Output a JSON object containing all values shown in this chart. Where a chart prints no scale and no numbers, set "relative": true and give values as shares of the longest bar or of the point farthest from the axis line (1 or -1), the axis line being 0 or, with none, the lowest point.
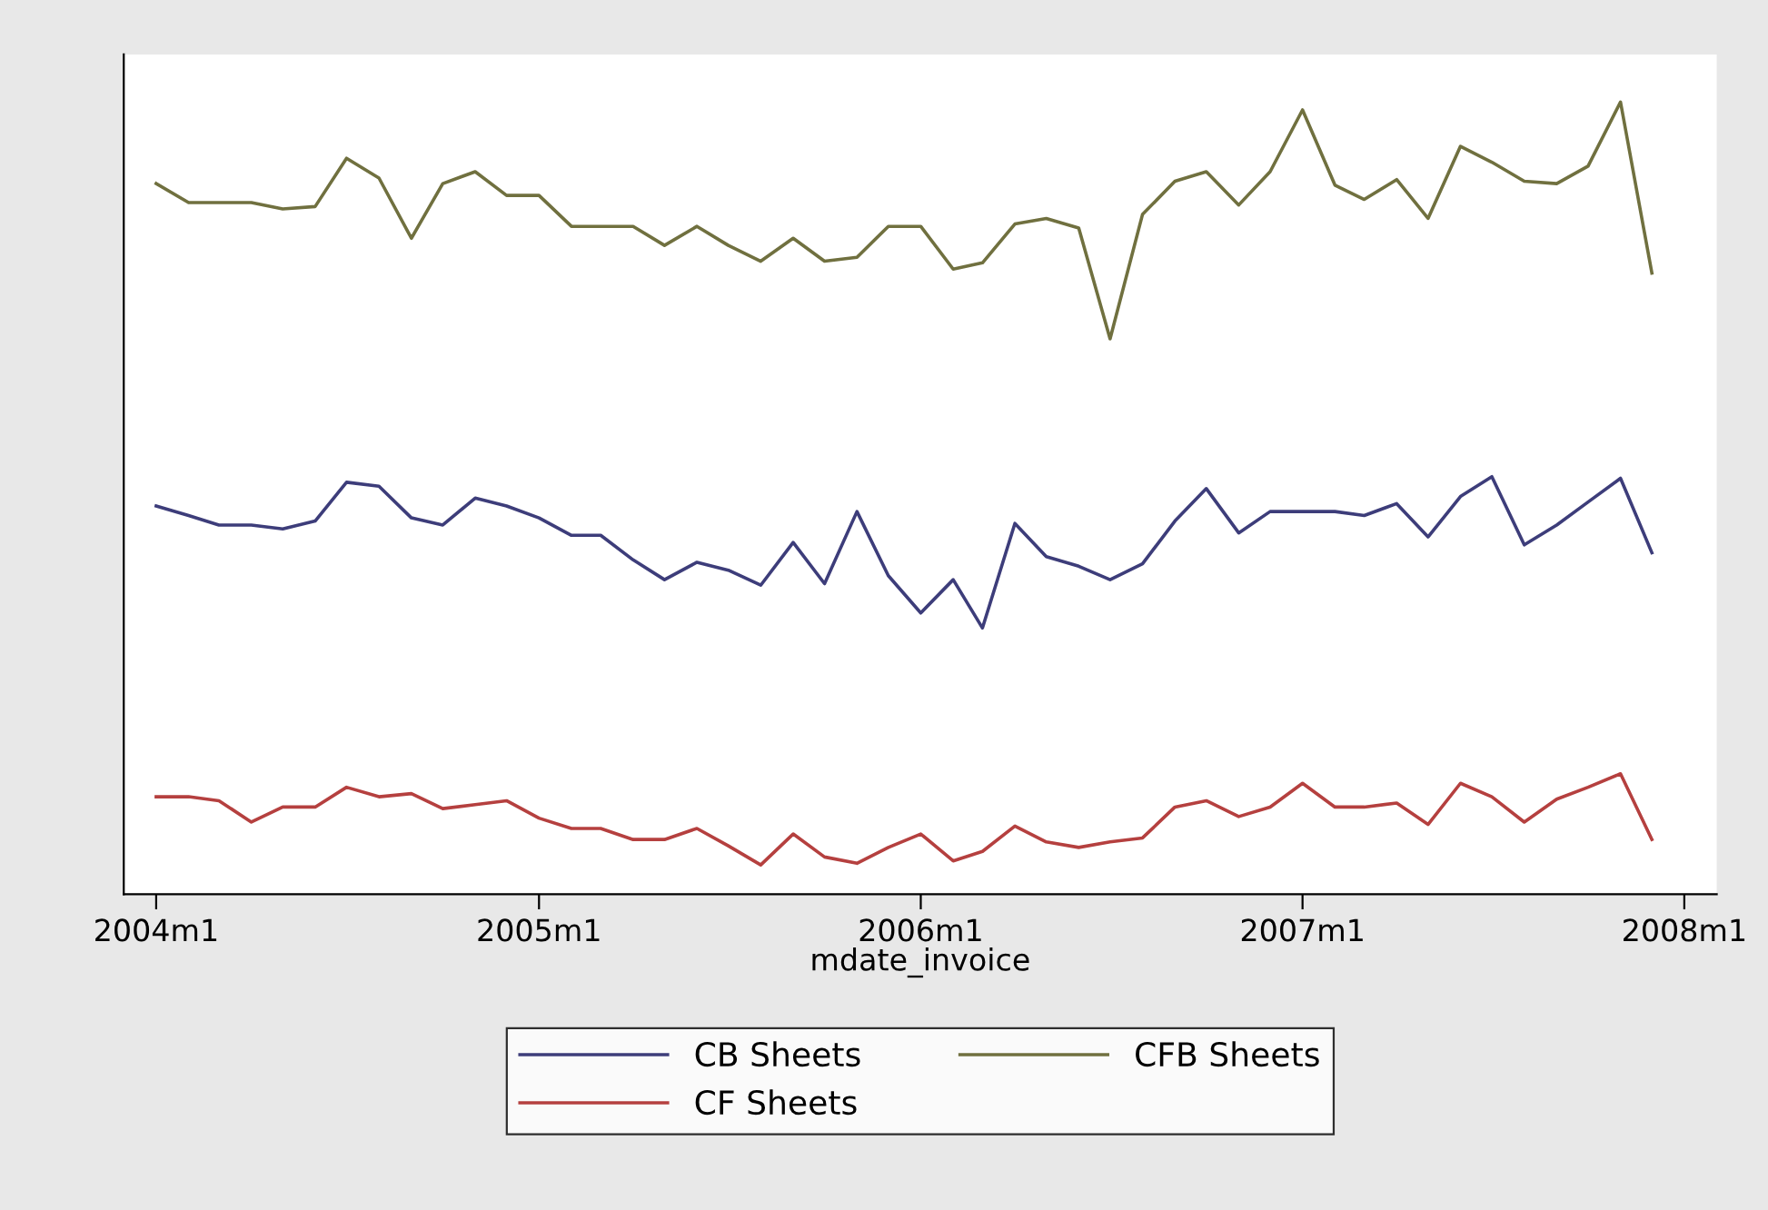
{
  "chart_data": {
    "type": "line",
    "relative": true,
    "xlabel": "mdate_invoice",
    "legend": "bottom",
    "x": [
      "2004-01",
      "2004-02",
      "2004-03",
      "2004-04",
      "2004-05",
      "2004-06",
      "2004-07",
      "2004-08",
      "2004-09",
      "2004-10",
      "2004-11",
      "2004-12",
      "2005-01",
      "2005-02",
      "2005-03",
      "2005-04",
      "2005-05",
      "2005-06",
      "2005-07",
      "2005-08",
      "2005-09",
      "2005-10",
      "2005-11",
      "2005-12",
      "2006-01",
      "2006-02",
      "2006-03",
      "2006-04",
      "2006-05",
      "2006-06",
      "2006-07",
      "2006-08",
      "2006-09",
      "2006-10",
      "2006-11",
      "2006-12",
      "2007-01",
      "2007-02",
      "2007-03",
      "2007-04",
      "2007-05",
      "2007-06",
      "2007-07",
      "2007-08",
      "2007-09",
      "2007-10",
      "2007-11",
      "2007-12"
    ],
    "xlim": [
      "2003-12",
      "2008-02"
    ],
    "xticks": [
      {
        "value": "2004-01",
        "label": "2004m1"
      },
      {
        "value": "2005-01",
        "label": "2005m1"
      },
      {
        "value": "2006-01",
        "label": "2006m1"
      },
      {
        "value": "2007-01",
        "label": "2007m1"
      },
      {
        "value": "2008-01",
        "label": "2008m1"
      }
    ],
    "series": [
      {
        "name": "CB Sheets",
        "color": "#3d3d7a",
        "values": [
          0.49,
          0.478,
          0.466,
          0.466,
          0.461,
          0.471,
          0.52,
          0.515,
          0.475,
          0.466,
          0.5,
          0.49,
          0.475,
          0.453,
          0.453,
          0.422,
          0.397,
          0.419,
          0.409,
          0.39,
          0.444,
          0.392,
          0.483,
          0.402,
          0.355,
          0.397,
          0.336,
          0.468,
          0.426,
          0.414,
          0.397,
          0.417,
          0.471,
          0.512,
          0.456,
          0.483,
          0.483,
          0.483,
          0.478,
          0.493,
          0.451,
          0.502,
          0.527,
          0.441,
          0.466,
          0.495,
          0.525,
          0.431
        ]
      },
      {
        "name": "CF Sheets",
        "color": "#b5403f",
        "values": [
          0.123,
          0.123,
          0.118,
          0.091,
          0.11,
          0.11,
          0.135,
          0.123,
          0.127,
          0.108,
          0.113,
          0.118,
          0.096,
          0.083,
          0.083,
          0.069,
          0.069,
          0.083,
          0.061,
          0.037,
          0.076,
          0.047,
          0.039,
          0.059,
          0.076,
          0.042,
          0.054,
          0.086,
          0.066,
          0.059,
          0.066,
          0.071,
          0.11,
          0.118,
          0.098,
          0.11,
          0.14,
          0.11,
          0.11,
          0.115,
          0.088,
          0.14,
          0.123,
          0.091,
          0.12,
          0.135,
          0.152,
          0.069
        ]
      },
      {
        "name": "CFB Sheets",
        "color": "#70703f",
        "values": [
          0.897,
          0.873,
          0.873,
          0.873,
          0.865,
          0.868,
          0.929,
          0.904,
          0.828,
          0.897,
          0.912,
          0.882,
          0.882,
          0.843,
          0.843,
          0.843,
          0.819,
          0.843,
          0.819,
          0.799,
          0.828,
          0.799,
          0.804,
          0.843,
          0.843,
          0.789,
          0.797,
          0.846,
          0.853,
          0.841,
          0.701,
          0.858,
          0.9,
          0.912,
          0.87,
          0.912,
          0.99,
          0.895,
          0.877,
          0.902,
          0.853,
          0.944,
          0.924,
          0.9,
          0.897,
          0.919,
          1,
          0.784
        ]
      }
    ]
  }
}
